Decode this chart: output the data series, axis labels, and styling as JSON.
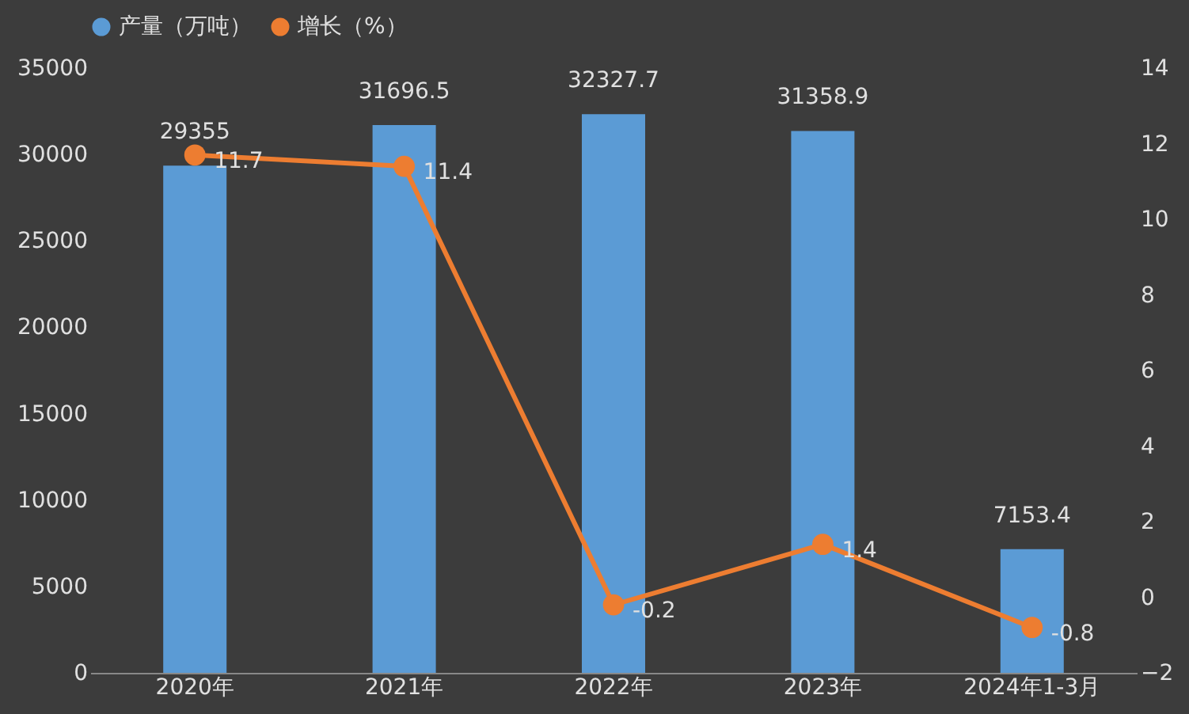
{
  "chart_data": {
    "type": "bar",
    "categories": [
      "2020年",
      "2021年",
      "2022年",
      "2023年",
      "2024年1-3月"
    ],
    "series": [
      {
        "name": "产量（万吨）",
        "color": "#5b9bd5",
        "values": [
          29355,
          31696.5,
          32327.7,
          31358.9,
          7153.4
        ]
      },
      {
        "name": "增长（%）",
        "type": "line",
        "axis": "y2",
        "color": "#ed7d31",
        "values": [
          11.7,
          11.4,
          -0.2,
          1.4,
          -0.8
        ]
      }
    ],
    "ylim": [
      0,
      35000
    ],
    "yticks": [
      0,
      5000,
      10000,
      15000,
      20000,
      25000,
      30000,
      35000
    ],
    "y2lim": [
      -2,
      14
    ],
    "y2ticks": [
      -2,
      0,
      2,
      4,
      6,
      8,
      10,
      12,
      14
    ],
    "data_labels": true,
    "legend": "top",
    "grid": false,
    "marker": "circle",
    "line_style": "solid"
  }
}
